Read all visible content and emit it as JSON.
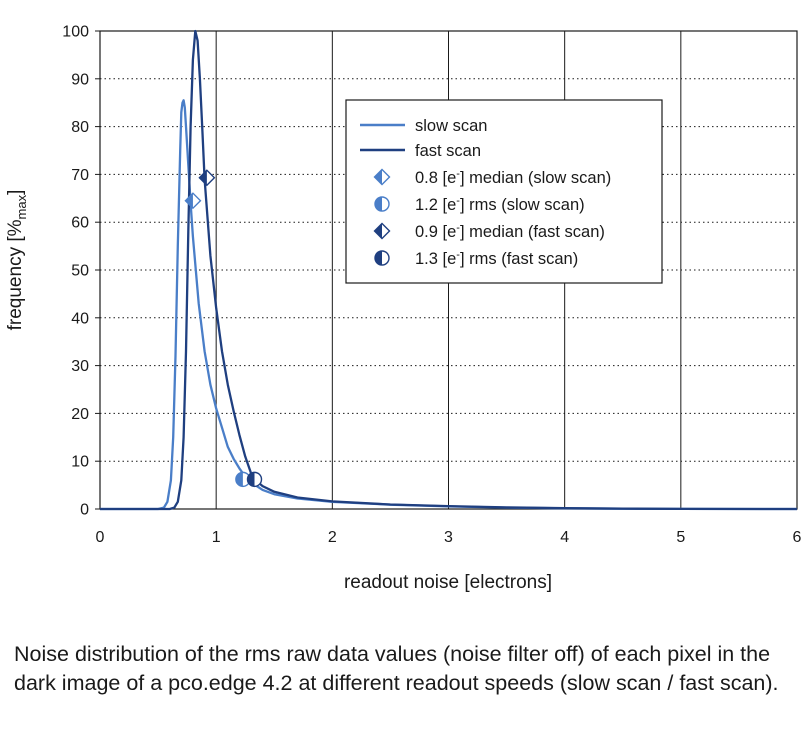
{
  "chart_data": {
    "type": "line",
    "xlabel": "readout noise [electrons]",
    "ylabel_main": "frequency [%",
    "ylabel_sub": "max",
    "ylabel_close": "]",
    "xlim": [
      0,
      6
    ],
    "ylim": [
      0,
      100
    ],
    "x_ticks": [
      0,
      1,
      2,
      3,
      4,
      5,
      6
    ],
    "y_ticks": [
      0,
      10,
      20,
      30,
      40,
      50,
      60,
      70,
      80,
      90,
      100
    ],
    "grid": {
      "vertical": "solid",
      "horizontal": "dotted"
    },
    "legend_position": "upper-right",
    "series": [
      {
        "name": "slow scan",
        "color": "#4a7ec8",
        "points": [
          [
            0,
            0
          ],
          [
            0.5,
            0
          ],
          [
            0.55,
            0.3
          ],
          [
            0.58,
            1.5
          ],
          [
            0.61,
            6
          ],
          [
            0.63,
            15
          ],
          [
            0.65,
            32
          ],
          [
            0.67,
            55
          ],
          [
            0.69,
            75
          ],
          [
            0.7,
            83
          ],
          [
            0.71,
            85
          ],
          [
            0.72,
            85.5
          ],
          [
            0.73,
            84
          ],
          [
            0.74,
            80
          ],
          [
            0.76,
            72
          ],
          [
            0.78,
            64
          ],
          [
            0.8,
            57
          ],
          [
            0.85,
            43
          ],
          [
            0.9,
            33
          ],
          [
            0.95,
            26
          ],
          [
            1.0,
            21
          ],
          [
            1.05,
            17
          ],
          [
            1.1,
            13
          ],
          [
            1.15,
            10.5
          ],
          [
            1.2,
            8.5
          ],
          [
            1.25,
            6.8
          ],
          [
            1.3,
            5.6
          ],
          [
            1.4,
            4
          ],
          [
            1.5,
            3.1
          ],
          [
            1.7,
            2.2
          ],
          [
            2.0,
            1.5
          ],
          [
            2.5,
            0.9
          ],
          [
            3.0,
            0.55
          ],
          [
            3.5,
            0.3
          ],
          [
            4.0,
            0.15
          ],
          [
            4.5,
            0.07
          ],
          [
            5.0,
            0.03
          ],
          [
            6.0,
            0
          ]
        ]
      },
      {
        "name": "fast scan",
        "color": "#1f3f80",
        "points": [
          [
            0,
            0
          ],
          [
            0.6,
            0
          ],
          [
            0.64,
            0.3
          ],
          [
            0.67,
            1.5
          ],
          [
            0.7,
            6
          ],
          [
            0.72,
            15
          ],
          [
            0.74,
            33
          ],
          [
            0.76,
            58
          ],
          [
            0.78,
            80
          ],
          [
            0.8,
            94
          ],
          [
            0.82,
            100
          ],
          [
            0.84,
            98
          ],
          [
            0.86,
            90
          ],
          [
            0.88,
            80
          ],
          [
            0.9,
            69
          ],
          [
            0.95,
            53
          ],
          [
            1.0,
            42
          ],
          [
            1.05,
            33
          ],
          [
            1.1,
            26
          ],
          [
            1.15,
            20.5
          ],
          [
            1.2,
            15.5
          ],
          [
            1.25,
            11
          ],
          [
            1.3,
            7.5
          ],
          [
            1.35,
            5.8
          ],
          [
            1.4,
            4.8
          ],
          [
            1.5,
            3.6
          ],
          [
            1.7,
            2.4
          ],
          [
            2.0,
            1.6
          ],
          [
            2.5,
            0.95
          ],
          [
            3.0,
            0.6
          ],
          [
            3.5,
            0.33
          ],
          [
            4.0,
            0.17
          ],
          [
            4.5,
            0.08
          ],
          [
            5.0,
            0.03
          ],
          [
            6.0,
            0
          ]
        ]
      }
    ],
    "markers": [
      {
        "label": "0.8 [e",
        "label_sup": "-",
        "label_end": "] median (slow scan)",
        "shape": "diamond",
        "series": "slow scan",
        "x": 0.8,
        "y": 64.5
      },
      {
        "label": "1.2 [e",
        "label_sup": "-",
        "label_end": "] rms (slow scan)",
        "shape": "circle",
        "series": "slow scan",
        "x": 1.23,
        "y": 6.2
      },
      {
        "label": "0.9 [e",
        "label_sup": "-",
        "label_end": "] median (fast scan)",
        "shape": "diamond",
        "series": "fast scan",
        "x": 0.92,
        "y": 69.3
      },
      {
        "label": "1.3 [e",
        "label_sup": "-",
        "label_end": "] rms (fast scan)",
        "shape": "circle",
        "series": "fast scan",
        "x": 1.33,
        "y": 6.2
      }
    ]
  },
  "caption": "Noise distribution of the rms raw data values (noise filter off) of each pixel in the dark image of a pco.edge 4.2 at different readout speeds (slow scan / fast scan)."
}
